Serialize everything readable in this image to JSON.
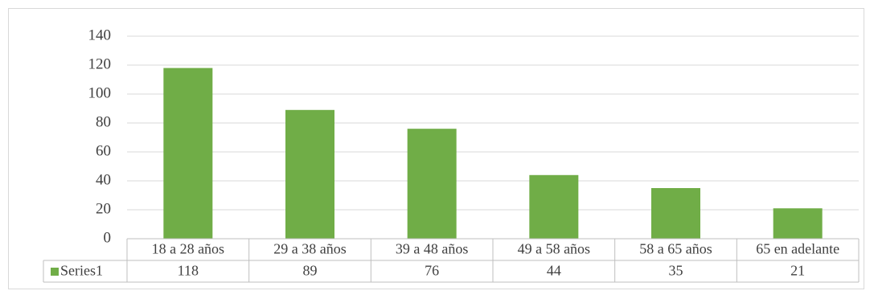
{
  "chart_data": {
    "type": "bar",
    "title": "",
    "xlabel": "",
    "ylabel": "",
    "categories": [
      "18 a 28 años",
      "29 a 38 años",
      "39 a 48 años",
      "49 a 58 años",
      "58 a 65 años",
      "65 en adelante"
    ],
    "series": [
      {
        "name": "Series1",
        "values": [
          118,
          89,
          76,
          44,
          35,
          21
        ],
        "color": "#70ad47"
      }
    ],
    "ylim": [
      0,
      140
    ],
    "yticks": [
      0,
      20,
      40,
      60,
      80,
      100,
      120,
      140
    ],
    "grid": true,
    "legend": "data-table-left",
    "data_table": true,
    "colors": {
      "gridline": "#d9d9d9",
      "border": "#bfbfbf",
      "text": "#404040"
    }
  }
}
